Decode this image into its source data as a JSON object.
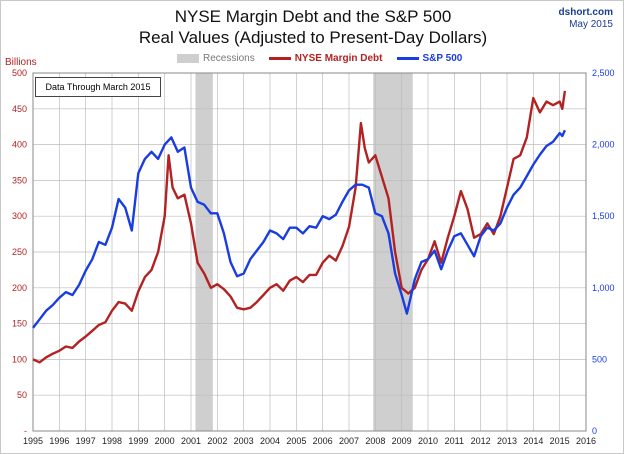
{
  "header": {
    "title_line1": "NYSE Margin Debt and the S&P 500",
    "title_line2": "Real Values (Adjusted to Present-Day Dollars)",
    "source": "dshort.com",
    "date": "May 2015"
  },
  "note": "Data Through March 2015",
  "chart_data": {
    "type": "line",
    "title": "NYSE Margin Debt and the S&P 500 Real Values (Adjusted to Present-Day Dollars)",
    "ylabel_left": "Billions",
    "colors": {
      "margin_debt": "#b22222",
      "sp500": "#1a3de0",
      "recession": "#cfcfcf",
      "grid": "#bdbdbd"
    },
    "x_range": [
      1995,
      2016
    ],
    "y_left_range": [
      0,
      500
    ],
    "y_right_range": [
      0,
      2500
    ],
    "grid": true,
    "legend_position": "top-center",
    "x_ticks": [
      "1995",
      "1996",
      "1997",
      "1998",
      "1999",
      "2000",
      "2001",
      "2002",
      "2003",
      "2004",
      "2005",
      "2006",
      "2007",
      "2008",
      "2009",
      "2010",
      "2011",
      "2012",
      "2013",
      "2014",
      "2015",
      "2016"
    ],
    "y_left_ticks": [
      "-",
      "50",
      "100",
      "150",
      "200",
      "250",
      "300",
      "350",
      "400",
      "450",
      "500"
    ],
    "y_right_ticks": [
      "0",
      "500",
      "1,000",
      "1,500",
      "2,000",
      "2,500"
    ],
    "legend": [
      {
        "key": "recession",
        "label": "Recessions"
      },
      {
        "key": "margin_debt",
        "label": "NYSE Margin Debt"
      },
      {
        "key": "sp500",
        "label": "S&P 500"
      }
    ],
    "recessions": [
      [
        2001.17,
        2001.83
      ],
      [
        2007.92,
        2009.42
      ]
    ],
    "series": [
      {
        "name": "NYSE Margin Debt",
        "axis": "left",
        "points": [
          [
            1995.0,
            100
          ],
          [
            1995.25,
            96
          ],
          [
            1995.5,
            103
          ],
          [
            1995.75,
            108
          ],
          [
            1996.0,
            112
          ],
          [
            1996.25,
            118
          ],
          [
            1996.5,
            116
          ],
          [
            1996.75,
            125
          ],
          [
            1997.0,
            132
          ],
          [
            1997.25,
            140
          ],
          [
            1997.5,
            148
          ],
          [
            1997.75,
            152
          ],
          [
            1998.0,
            168
          ],
          [
            1998.25,
            180
          ],
          [
            1998.5,
            178
          ],
          [
            1998.75,
            168
          ],
          [
            1999.0,
            195
          ],
          [
            1999.25,
            215
          ],
          [
            1999.5,
            225
          ],
          [
            1999.75,
            250
          ],
          [
            2000.0,
            300
          ],
          [
            2000.15,
            385
          ],
          [
            2000.3,
            340
          ],
          [
            2000.5,
            325
          ],
          [
            2000.75,
            330
          ],
          [
            2001.0,
            290
          ],
          [
            2001.25,
            235
          ],
          [
            2001.5,
            220
          ],
          [
            2001.75,
            200
          ],
          [
            2002.0,
            205
          ],
          [
            2002.25,
            198
          ],
          [
            2002.5,
            188
          ],
          [
            2002.75,
            172
          ],
          [
            2003.0,
            170
          ],
          [
            2003.25,
            172
          ],
          [
            2003.5,
            180
          ],
          [
            2003.75,
            190
          ],
          [
            2004.0,
            200
          ],
          [
            2004.25,
            205
          ],
          [
            2004.5,
            196
          ],
          [
            2004.75,
            210
          ],
          [
            2005.0,
            215
          ],
          [
            2005.25,
            208
          ],
          [
            2005.5,
            218
          ],
          [
            2005.75,
            218
          ],
          [
            2006.0,
            235
          ],
          [
            2006.25,
            245
          ],
          [
            2006.5,
            238
          ],
          [
            2006.75,
            258
          ],
          [
            2007.0,
            285
          ],
          [
            2007.25,
            340
          ],
          [
            2007.45,
            430
          ],
          [
            2007.6,
            395
          ],
          [
            2007.75,
            375
          ],
          [
            2008.0,
            385
          ],
          [
            2008.25,
            355
          ],
          [
            2008.5,
            325
          ],
          [
            2008.75,
            250
          ],
          [
            2009.0,
            200
          ],
          [
            2009.25,
            192
          ],
          [
            2009.5,
            200
          ],
          [
            2009.75,
            225
          ],
          [
            2010.0,
            240
          ],
          [
            2010.25,
            265
          ],
          [
            2010.5,
            235
          ],
          [
            2010.75,
            270
          ],
          [
            2011.0,
            300
          ],
          [
            2011.25,
            335
          ],
          [
            2011.5,
            310
          ],
          [
            2011.75,
            270
          ],
          [
            2012.0,
            275
          ],
          [
            2012.25,
            290
          ],
          [
            2012.5,
            275
          ],
          [
            2012.75,
            300
          ],
          [
            2013.0,
            340
          ],
          [
            2013.25,
            380
          ],
          [
            2013.5,
            385
          ],
          [
            2013.75,
            410
          ],
          [
            2014.0,
            465
          ],
          [
            2014.25,
            445
          ],
          [
            2014.5,
            460
          ],
          [
            2014.75,
            455
          ],
          [
            2015.0,
            460
          ],
          [
            2015.1,
            450
          ],
          [
            2015.2,
            475
          ]
        ]
      },
      {
        "name": "S&P 500",
        "axis": "right",
        "points": [
          [
            1995.0,
            720
          ],
          [
            1995.25,
            780
          ],
          [
            1995.5,
            840
          ],
          [
            1995.75,
            880
          ],
          [
            1996.0,
            930
          ],
          [
            1996.25,
            970
          ],
          [
            1996.5,
            950
          ],
          [
            1996.75,
            1020
          ],
          [
            1997.0,
            1120
          ],
          [
            1997.25,
            1200
          ],
          [
            1997.5,
            1320
          ],
          [
            1997.75,
            1300
          ],
          [
            1998.0,
            1420
          ],
          [
            1998.25,
            1620
          ],
          [
            1998.5,
            1560
          ],
          [
            1998.75,
            1400
          ],
          [
            1999.0,
            1800
          ],
          [
            1999.25,
            1900
          ],
          [
            1999.5,
            1950
          ],
          [
            1999.75,
            1900
          ],
          [
            2000.0,
            2000
          ],
          [
            2000.25,
            2050
          ],
          [
            2000.5,
            1950
          ],
          [
            2000.75,
            1980
          ],
          [
            2001.0,
            1700
          ],
          [
            2001.25,
            1600
          ],
          [
            2001.5,
            1580
          ],
          [
            2001.75,
            1520
          ],
          [
            2002.0,
            1520
          ],
          [
            2002.25,
            1380
          ],
          [
            2002.5,
            1180
          ],
          [
            2002.75,
            1080
          ],
          [
            2003.0,
            1100
          ],
          [
            2003.25,
            1200
          ],
          [
            2003.5,
            1260
          ],
          [
            2003.75,
            1320
          ],
          [
            2004.0,
            1400
          ],
          [
            2004.25,
            1380
          ],
          [
            2004.5,
            1340
          ],
          [
            2004.75,
            1420
          ],
          [
            2005.0,
            1420
          ],
          [
            2005.25,
            1380
          ],
          [
            2005.5,
            1430
          ],
          [
            2005.75,
            1420
          ],
          [
            2006.0,
            1500
          ],
          [
            2006.25,
            1480
          ],
          [
            2006.5,
            1510
          ],
          [
            2006.75,
            1600
          ],
          [
            2007.0,
            1680
          ],
          [
            2007.25,
            1720
          ],
          [
            2007.5,
            1720
          ],
          [
            2007.75,
            1700
          ],
          [
            2008.0,
            1520
          ],
          [
            2008.25,
            1500
          ],
          [
            2008.5,
            1380
          ],
          [
            2008.75,
            1100
          ],
          [
            2009.0,
            950
          ],
          [
            2009.2,
            820
          ],
          [
            2009.5,
            1060
          ],
          [
            2009.75,
            1180
          ],
          [
            2010.0,
            1200
          ],
          [
            2010.25,
            1260
          ],
          [
            2010.5,
            1130
          ],
          [
            2010.75,
            1260
          ],
          [
            2011.0,
            1360
          ],
          [
            2011.25,
            1380
          ],
          [
            2011.5,
            1300
          ],
          [
            2011.75,
            1220
          ],
          [
            2012.0,
            1360
          ],
          [
            2012.25,
            1420
          ],
          [
            2012.5,
            1400
          ],
          [
            2012.75,
            1450
          ],
          [
            2013.0,
            1560
          ],
          [
            2013.25,
            1650
          ],
          [
            2013.5,
            1700
          ],
          [
            2013.75,
            1780
          ],
          [
            2014.0,
            1860
          ],
          [
            2014.25,
            1930
          ],
          [
            2014.5,
            1990
          ],
          [
            2014.75,
            2020
          ],
          [
            2015.0,
            2080
          ],
          [
            2015.1,
            2060
          ],
          [
            2015.2,
            2100
          ]
        ]
      }
    ]
  }
}
